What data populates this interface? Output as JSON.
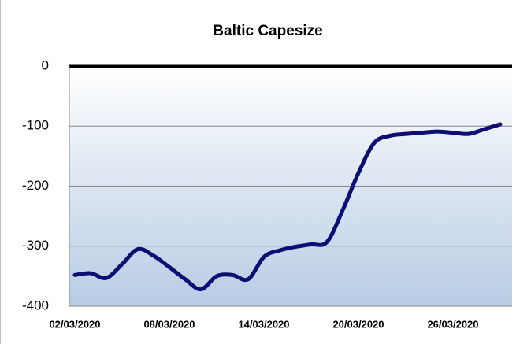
{
  "chart_data": {
    "type": "line",
    "title": "Baltic Capesize",
    "categories": [
      "02/03/2020",
      null,
      null,
      null,
      null,
      null,
      "08/03/2020",
      null,
      null,
      null,
      null,
      null,
      "14/03/2020",
      null,
      null,
      null,
      null,
      null,
      "20/03/2020",
      null,
      null,
      null,
      null,
      null,
      "26/03/2020",
      null,
      null,
      null
    ],
    "series": [
      {
        "name": "Baltic Capesize",
        "color": "#0d0d73",
        "values": [
          -348,
          -345,
          -353,
          -330,
          -305,
          -316,
          -335,
          -355,
          -372,
          -350,
          -348,
          -355,
          -318,
          -307,
          -301,
          -297,
          -293,
          -240,
          -178,
          -128,
          -116,
          -113,
          -111,
          -109,
          -111,
          -113,
          -105,
          -97
        ]
      }
    ],
    "ylim": [
      -400,
      0
    ],
    "yticks": [
      0,
      -100,
      -200,
      -300,
      -400
    ],
    "grid": true
  }
}
